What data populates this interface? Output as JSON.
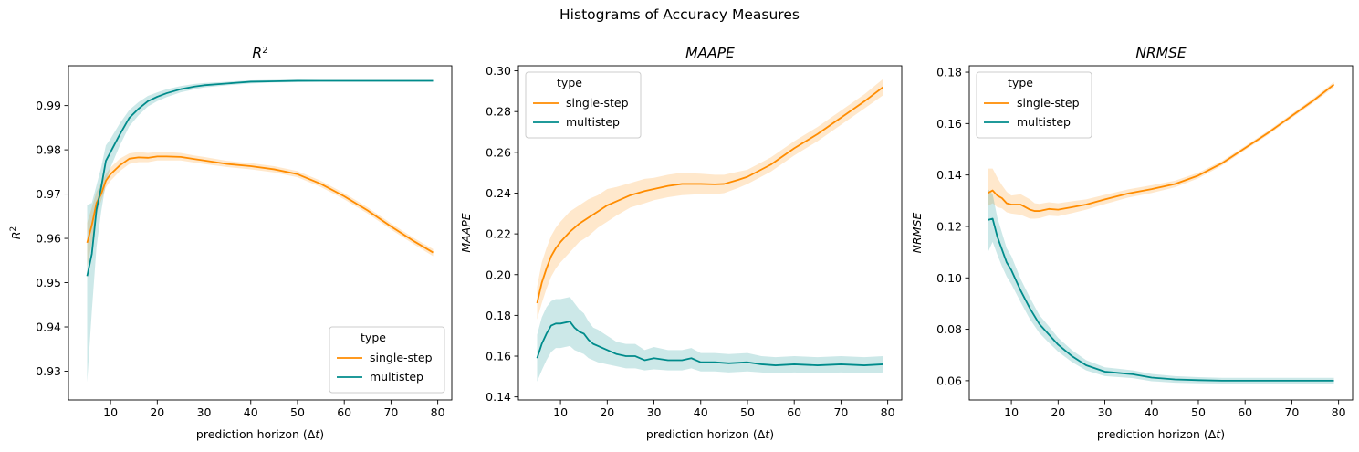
{
  "figure": {
    "suptitle": "Histograms of Accuracy Measures",
    "colors": {
      "single-step": "#ff8c00",
      "multistep": "#008b8b"
    }
  },
  "chart_data": [
    {
      "type": "line",
      "title": "R^2",
      "xlabel": "prediction horizon (Δt)",
      "ylabel": "R^2",
      "xlim": [
        1,
        83
      ],
      "ylim": [
        0.9235,
        0.999
      ],
      "xticks": [
        10,
        20,
        30,
        40,
        50,
        60,
        70,
        80
      ],
      "yticks": [
        0.93,
        0.94,
        0.95,
        0.96,
        0.97,
        0.98,
        0.99
      ],
      "ytick_labels": [
        "0.93",
        "0.94",
        "0.95",
        "0.96",
        "0.97",
        "0.98",
        "0.99"
      ],
      "grid": false,
      "legend": {
        "title": "type",
        "position": "lower right"
      },
      "series": [
        {
          "name": "single-step",
          "color": "#ff8c00",
          "x": [
            5,
            6,
            7,
            8,
            9,
            10,
            12,
            14,
            16,
            18,
            20,
            22,
            25,
            28,
            30,
            35,
            40,
            45,
            50,
            55,
            60,
            65,
            70,
            75,
            79
          ],
          "y": [
            0.959,
            0.963,
            0.968,
            0.97,
            0.973,
            0.9745,
            0.9765,
            0.978,
            0.9783,
            0.9782,
            0.9785,
            0.9785,
            0.9784,
            0.9779,
            0.9776,
            0.9768,
            0.9763,
            0.9756,
            0.9745,
            0.9723,
            0.9695,
            0.9663,
            0.9627,
            0.9593,
            0.9568
          ],
          "lower": [
            0.9535,
            0.959,
            0.9655,
            0.9685,
            0.9715,
            0.973,
            0.9752,
            0.9768,
            0.9772,
            0.9772,
            0.9776,
            0.9776,
            0.9776,
            0.9771,
            0.9768,
            0.9761,
            0.9756,
            0.9749,
            0.9738,
            0.9716,
            0.9688,
            0.9656,
            0.962,
            0.9586,
            0.956
          ],
          "upper": [
            0.9635,
            0.967,
            0.9705,
            0.9725,
            0.9745,
            0.976,
            0.978,
            0.9792,
            0.9795,
            0.9793,
            0.9795,
            0.9795,
            0.9793,
            0.9787,
            0.9784,
            0.9775,
            0.977,
            0.9763,
            0.9752,
            0.973,
            0.9702,
            0.967,
            0.9634,
            0.96,
            0.9576
          ]
        },
        {
          "name": "multistep",
          "color": "#008b8b",
          "x": [
            5,
            6,
            7,
            8,
            9,
            10,
            12,
            14,
            16,
            18,
            20,
            22,
            25,
            28,
            30,
            35,
            40,
            45,
            50,
            55,
            60,
            65,
            70,
            75,
            79
          ],
          "y": [
            0.9515,
            0.9565,
            0.9665,
            0.9715,
            0.9775,
            0.9795,
            0.9835,
            0.9872,
            0.9893,
            0.991,
            0.992,
            0.9928,
            0.9937,
            0.9943,
            0.9946,
            0.995,
            0.9954,
            0.9955,
            0.9956,
            0.9956,
            0.9956,
            0.9956,
            0.9956,
            0.9956,
            0.9956
          ],
          "lower": [
            0.9275,
            0.9435,
            0.958,
            0.966,
            0.9725,
            0.976,
            0.981,
            0.9853,
            0.9878,
            0.9898,
            0.991,
            0.9919,
            0.993,
            0.9937,
            0.9941,
            0.9946,
            0.995,
            0.9952,
            0.9953,
            0.9954,
            0.9954,
            0.9954,
            0.9954,
            0.9954,
            0.9954
          ],
          "upper": [
            0.9675,
            0.968,
            0.972,
            0.976,
            0.981,
            0.9825,
            0.986,
            0.989,
            0.9908,
            0.9922,
            0.993,
            0.9937,
            0.9944,
            0.9949,
            0.9951,
            0.9954,
            0.9957,
            0.9958,
            0.9959,
            0.9958,
            0.9958,
            0.9958,
            0.9958,
            0.9958,
            0.9958
          ]
        }
      ]
    },
    {
      "type": "line",
      "title": "MAAPE",
      "xlabel": "prediction horizon (Δt)",
      "ylabel": "MAAPE",
      "xlim": [
        1,
        83
      ],
      "ylim": [
        0.1385,
        0.3025
      ],
      "xticks": [
        10,
        20,
        30,
        40,
        50,
        60,
        70,
        80
      ],
      "yticks": [
        0.14,
        0.16,
        0.18,
        0.2,
        0.22,
        0.24,
        0.26,
        0.28,
        0.3
      ],
      "ytick_labels": [
        "0.14",
        "0.16",
        "0.18",
        "0.20",
        "0.22",
        "0.24",
        "0.26",
        "0.28",
        "0.30"
      ],
      "grid": false,
      "legend": {
        "title": "type",
        "position": "upper left"
      },
      "series": [
        {
          "name": "single-step",
          "color": "#ff8c00",
          "x": [
            5,
            6,
            7,
            8,
            9,
            10,
            12,
            14,
            16,
            18,
            20,
            22,
            25,
            28,
            30,
            33,
            36,
            40,
            43,
            45,
            48,
            50,
            55,
            60,
            65,
            70,
            75,
            79
          ],
          "y": [
            0.186,
            0.196,
            0.203,
            0.209,
            0.213,
            0.216,
            0.221,
            0.225,
            0.228,
            0.231,
            0.234,
            0.236,
            0.239,
            0.241,
            0.242,
            0.2435,
            0.2445,
            0.2445,
            0.2443,
            0.2445,
            0.2465,
            0.248,
            0.254,
            0.262,
            0.269,
            0.277,
            0.285,
            0.292
          ],
          "lower": [
            0.178,
            0.186,
            0.193,
            0.199,
            0.203,
            0.206,
            0.211,
            0.216,
            0.219,
            0.223,
            0.226,
            0.229,
            0.233,
            0.235,
            0.2365,
            0.238,
            0.239,
            0.2395,
            0.2395,
            0.24,
            0.2425,
            0.2445,
            0.2505,
            0.2585,
            0.2655,
            0.2735,
            0.2815,
            0.288
          ],
          "upper": [
            0.194,
            0.206,
            0.213,
            0.219,
            0.223,
            0.226,
            0.231,
            0.234,
            0.237,
            0.239,
            0.242,
            0.243,
            0.245,
            0.247,
            0.2475,
            0.249,
            0.25,
            0.2495,
            0.249,
            0.249,
            0.2505,
            0.2515,
            0.2575,
            0.2655,
            0.2725,
            0.2805,
            0.2885,
            0.296
          ]
        },
        {
          "name": "multistep",
          "color": "#008b8b",
          "x": [
            5,
            6,
            7,
            8,
            9,
            10,
            12,
            13,
            14,
            15,
            16,
            17,
            18,
            20,
            22,
            24,
            26,
            28,
            30,
            33,
            36,
            38,
            40,
            43,
            46,
            50,
            53,
            56,
            60,
            65,
            70,
            75,
            79
          ],
          "y": [
            0.159,
            0.166,
            0.171,
            0.175,
            0.176,
            0.176,
            0.177,
            0.174,
            0.172,
            0.171,
            0.168,
            0.166,
            0.165,
            0.163,
            0.161,
            0.16,
            0.16,
            0.158,
            0.159,
            0.158,
            0.158,
            0.159,
            0.157,
            0.157,
            0.1565,
            0.157,
            0.156,
            0.1555,
            0.156,
            0.1555,
            0.156,
            0.1555,
            0.156
          ],
          "lower": [
            0.1475,
            0.153,
            0.158,
            0.162,
            0.164,
            0.164,
            0.165,
            0.163,
            0.162,
            0.161,
            0.159,
            0.158,
            0.157,
            0.156,
            0.155,
            0.154,
            0.154,
            0.153,
            0.1535,
            0.153,
            0.153,
            0.154,
            0.1525,
            0.1525,
            0.152,
            0.1525,
            0.152,
            0.1515,
            0.152,
            0.1515,
            0.152,
            0.1515,
            0.152
          ],
          "upper": [
            0.1705,
            0.179,
            0.184,
            0.187,
            0.188,
            0.188,
            0.189,
            0.186,
            0.183,
            0.181,
            0.177,
            0.174,
            0.173,
            0.17,
            0.167,
            0.166,
            0.166,
            0.163,
            0.1645,
            0.163,
            0.163,
            0.164,
            0.1615,
            0.1615,
            0.161,
            0.1615,
            0.16,
            0.1595,
            0.16,
            0.1595,
            0.16,
            0.1595,
            0.16
          ]
        }
      ]
    },
    {
      "type": "line",
      "title": "NRMSE",
      "xlabel": "prediction horizon (Δt)",
      "ylabel": "NRMSE",
      "xlim": [
        1,
        83
      ],
      "ylim": [
        0.0525,
        0.1825
      ],
      "xticks": [
        10,
        20,
        30,
        40,
        50,
        60,
        70,
        80
      ],
      "yticks": [
        0.06,
        0.08,
        0.1,
        0.12,
        0.14,
        0.16,
        0.18
      ],
      "ytick_labels": [
        "0.06",
        "0.08",
        "0.10",
        "0.12",
        "0.14",
        "0.16",
        "0.18"
      ],
      "grid": false,
      "legend": {
        "title": "type",
        "position": "upper left"
      },
      "series": [
        {
          "name": "single-step",
          "color": "#ff8c00",
          "x": [
            5,
            6,
            7,
            8,
            9,
            10,
            12,
            14,
            15,
            16,
            18,
            20,
            23,
            26,
            30,
            35,
            40,
            45,
            50,
            55,
            60,
            65,
            70,
            75,
            79
          ],
          "y": [
            0.133,
            0.134,
            0.132,
            0.131,
            0.129,
            0.1285,
            0.1285,
            0.1265,
            0.126,
            0.126,
            0.1268,
            0.1265,
            0.1275,
            0.1285,
            0.1305,
            0.1328,
            0.1345,
            0.1365,
            0.1398,
            0.1445,
            0.1505,
            0.1565,
            0.163,
            0.1695,
            0.1752
          ],
          "lower": [
            0.128,
            0.129,
            0.1275,
            0.127,
            0.1255,
            0.125,
            0.1245,
            0.123,
            0.123,
            0.1232,
            0.1242,
            0.124,
            0.1252,
            0.1265,
            0.1287,
            0.1312,
            0.133,
            0.1352,
            0.1387,
            0.1436,
            0.1497,
            0.1557,
            0.1622,
            0.1686,
            0.1742
          ],
          "upper": [
            0.1425,
            0.1425,
            0.139,
            0.136,
            0.1335,
            0.132,
            0.1325,
            0.1305,
            0.129,
            0.1288,
            0.1294,
            0.129,
            0.1298,
            0.1305,
            0.1323,
            0.1344,
            0.136,
            0.1378,
            0.1409,
            0.1454,
            0.1513,
            0.1573,
            0.1638,
            0.1704,
            0.1762
          ]
        },
        {
          "name": "multistep",
          "color": "#008b8b",
          "x": [
            5,
            6,
            7,
            8,
            9,
            10,
            12,
            14,
            16,
            18,
            20,
            23,
            26,
            30,
            33,
            36,
            40,
            45,
            50,
            55,
            60,
            65,
            70,
            75,
            79
          ],
          "y": [
            0.1225,
            0.123,
            0.116,
            0.111,
            0.106,
            0.103,
            0.095,
            0.088,
            0.082,
            0.078,
            0.074,
            0.0695,
            0.066,
            0.0635,
            0.063,
            0.0625,
            0.0612,
            0.0605,
            0.0602,
            0.06,
            0.06,
            0.06,
            0.06,
            0.06,
            0.06
          ],
          "lower": [
            0.11,
            0.114,
            0.109,
            0.1045,
            0.1005,
            0.0975,
            0.0905,
            0.0838,
            0.0785,
            0.0748,
            0.0713,
            0.0672,
            0.064,
            0.0618,
            0.0614,
            0.061,
            0.0598,
            0.0592,
            0.059,
            0.0589,
            0.0589,
            0.0589,
            0.0589,
            0.0589,
            0.0589
          ],
          "upper": [
            0.1345,
            0.1325,
            0.1235,
            0.1175,
            0.1115,
            0.1085,
            0.0995,
            0.0922,
            0.0855,
            0.0812,
            0.0767,
            0.0718,
            0.068,
            0.0652,
            0.0646,
            0.064,
            0.0626,
            0.0618,
            0.0614,
            0.0611,
            0.0611,
            0.0611,
            0.0611,
            0.0611,
            0.0611
          ]
        }
      ]
    }
  ]
}
